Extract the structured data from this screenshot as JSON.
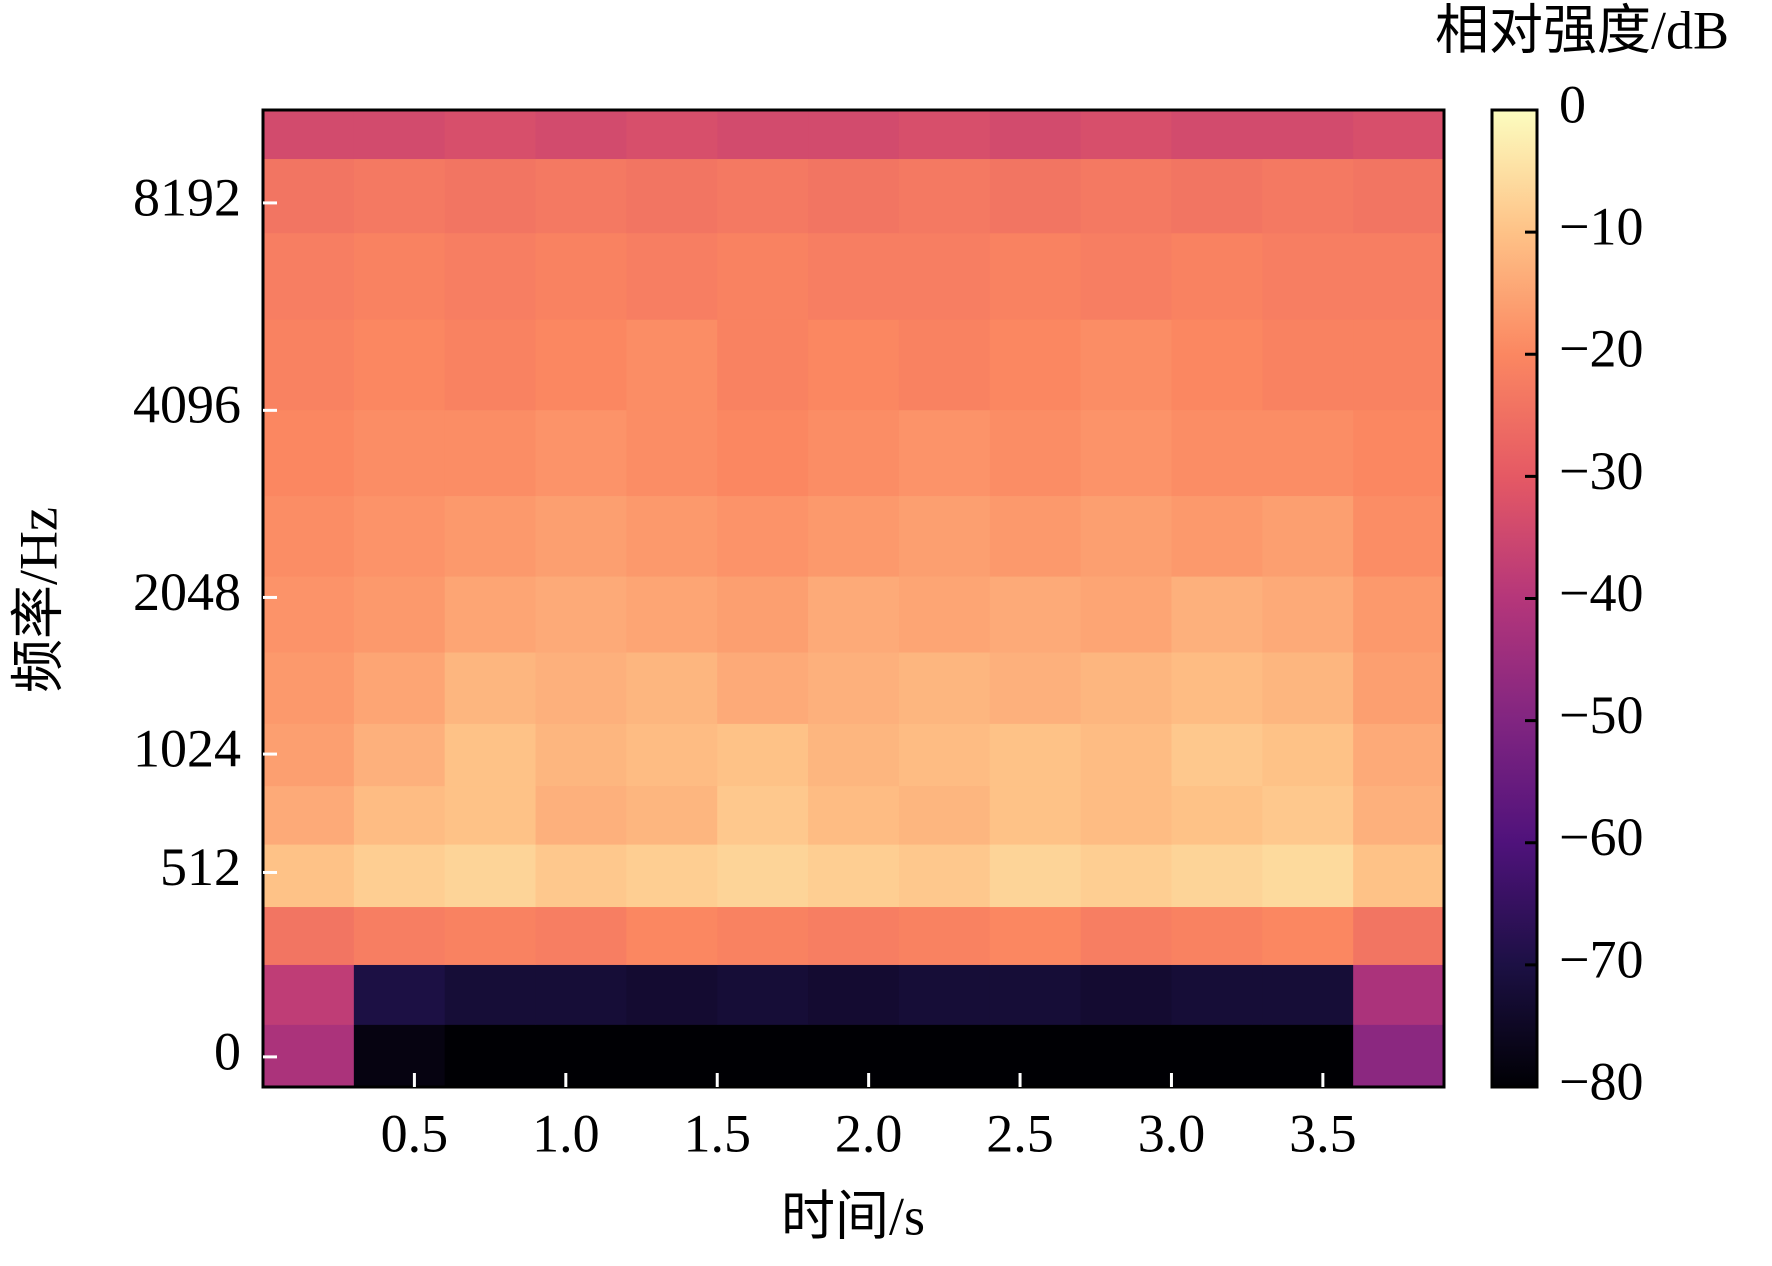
{
  "chart_data": {
    "type": "heatmap",
    "xlabel": "时间/s",
    "ylabel": "频率/Hz",
    "colormap": "magma",
    "yscale": "mel",
    "x": [
      0.15,
      0.45,
      0.75,
      1.05,
      1.35,
      1.65,
      1.95,
      2.25,
      2.55,
      2.85,
      3.15,
      3.45,
      3.75
    ],
    "y": [
      0,
      150,
      300,
      500,
      750,
      1000,
      1400,
      1900,
      2600,
      3500,
      4800,
      6500,
      8500,
      10500
    ],
    "z": [
      [
        -42,
        -78,
        -80,
        -80,
        -80,
        -80,
        -80,
        -80,
        -80,
        -80,
        -80,
        -80,
        -48
      ],
      [
        -38,
        -70,
        -72,
        -72,
        -73,
        -72,
        -73,
        -72,
        -72,
        -73,
        -72,
        -72,
        -42
      ],
      [
        -24,
        -22,
        -21,
        -22,
        -20,
        -21,
        -22,
        -21,
        -20,
        -22,
        -21,
        -20,
        -24
      ],
      [
        -10,
        -8,
        -7,
        -9,
        -8,
        -7,
        -8,
        -9,
        -7,
        -8,
        -7,
        -6,
        -10
      ],
      [
        -14,
        -11,
        -10,
        -13,
        -12,
        -9,
        -11,
        -12,
        -10,
        -11,
        -10,
        -9,
        -13
      ],
      [
        -16,
        -13,
        -10,
        -12,
        -11,
        -10,
        -12,
        -11,
        -10,
        -11,
        -9,
        -10,
        -14
      ],
      [
        -17,
        -15,
        -12,
        -13,
        -12,
        -14,
        -13,
        -12,
        -13,
        -12,
        -11,
        -12,
        -16
      ],
      [
        -18,
        -17,
        -15,
        -14,
        -15,
        -16,
        -14,
        -15,
        -14,
        -15,
        -13,
        -14,
        -17
      ],
      [
        -19,
        -18,
        -17,
        -16,
        -17,
        -18,
        -17,
        -16,
        -17,
        -16,
        -17,
        -16,
        -19
      ],
      [
        -20,
        -19,
        -19,
        -18,
        -19,
        -20,
        -19,
        -18,
        -19,
        -18,
        -19,
        -19,
        -20
      ],
      [
        -21,
        -20,
        -21,
        -20,
        -19,
        -21,
        -20,
        -21,
        -20,
        -19,
        -20,
        -21,
        -21
      ],
      [
        -22,
        -21,
        -22,
        -21,
        -22,
        -21,
        -22,
        -22,
        -21,
        -22,
        -21,
        -22,
        -22
      ],
      [
        -24,
        -23,
        -24,
        -23,
        -24,
        -23,
        -24,
        -23,
        -24,
        -23,
        -24,
        -23,
        -24
      ],
      [
        -34,
        -34,
        -33,
        -34,
        -33,
        -34,
        -34,
        -33,
        -34,
        -33,
        -34,
        -34,
        -33
      ]
    ],
    "xlim": [
      0,
      3.9
    ],
    "ylim": [
      -60,
      11025
    ],
    "xticks": [
      0.5,
      {
        "value": 1,
        "label": "1.0"
      },
      1.5,
      {
        "value": 2,
        "label": "2.0"
      },
      2.5,
      {
        "value": 3,
        "label": "3.0"
      },
      3.5
    ],
    "yticks": [
      0,
      512,
      1024,
      2048,
      4096,
      8192
    ],
    "colorbar": {
      "label": "相对强度/dB",
      "clim": [
        -80,
        0
      ],
      "ticks": [
        0,
        {
          "value": -10,
          "label": "−10"
        },
        {
          "value": -20,
          "label": "−20"
        },
        {
          "value": -30,
          "label": "−30"
        },
        {
          "value": -40,
          "label": "−40"
        },
        {
          "value": -50,
          "label": "−50"
        },
        {
          "value": -60,
          "label": "−60"
        },
        {
          "value": -70,
          "label": "−70"
        },
        {
          "value": -80,
          "label": "−80"
        }
      ]
    }
  }
}
